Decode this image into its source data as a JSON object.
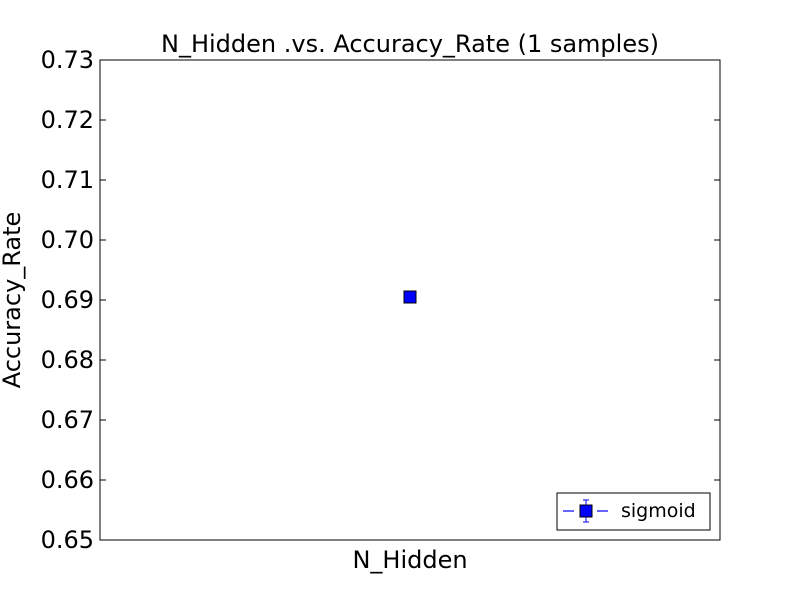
{
  "chart_data": {
    "type": "scatter",
    "title": "N_Hidden .vs. Accuracy_Rate (1 samples)",
    "xlabel": "N_Hidden",
    "ylabel": "Accuracy_Rate",
    "ylim": [
      0.65,
      0.73
    ],
    "yticks": [
      "0.65",
      "0.66",
      "0.67",
      "0.68",
      "0.69",
      "0.70",
      "0.71",
      "0.72",
      "0.73"
    ],
    "grid": false,
    "legend_placement": "lower-right",
    "series": [
      {
        "name": "sigmoid",
        "marker": "square",
        "line_style": "dashed",
        "color": "#0000ff",
        "points": [
          {
            "y": 0.6905,
            "yerr": 0.0
          }
        ]
      }
    ]
  }
}
